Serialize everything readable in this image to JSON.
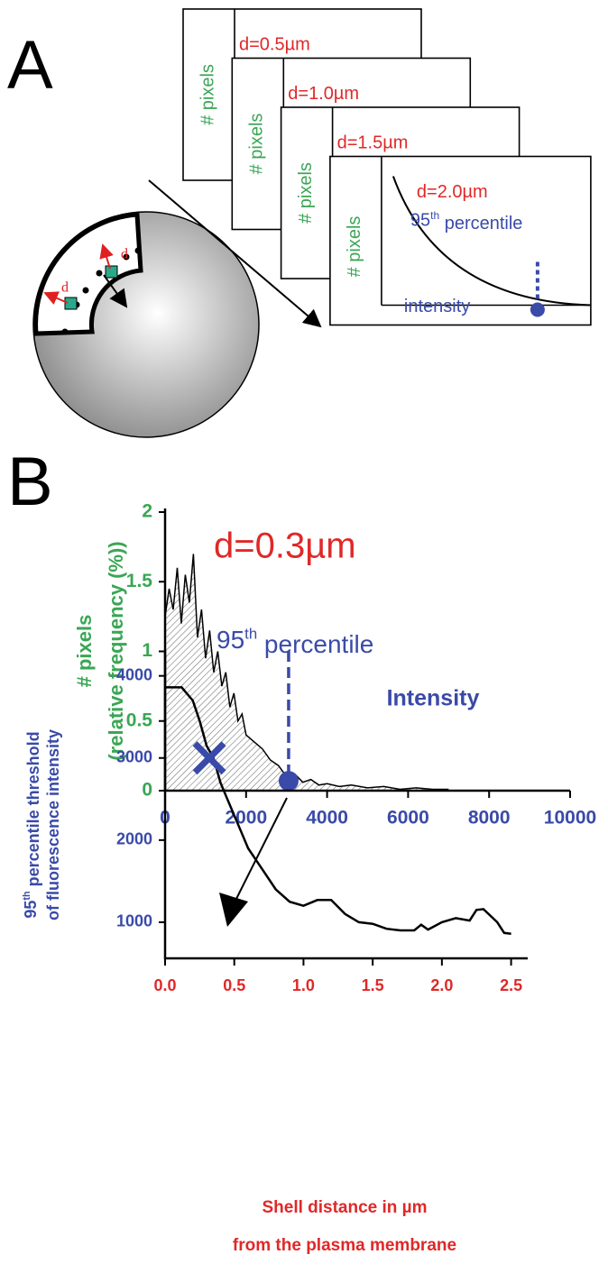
{
  "panel_a": {
    "label": "A",
    "frames": [
      {
        "label": "d=0.5µm",
        "ylabel": "# pixels"
      },
      {
        "label": "d=1.0µm",
        "ylabel": "# pixels"
      },
      {
        "label": "d=1.5µm",
        "ylabel": "# pixels"
      },
      {
        "label": "d=2.0µm",
        "ylabel": "# pixels"
      }
    ],
    "annotation": {
      "base": "95",
      "sup": "th",
      "rest": " percentile"
    },
    "xlabel": "intensity",
    "d_labels": [
      "d",
      "d"
    ]
  },
  "panel_b": {
    "label": "B"
  },
  "chart_data": [
    {
      "type": "area",
      "title": "d=0.3µm",
      "ylabel": [
        "# pixels",
        "(relative frequency (%))"
      ],
      "xlabel": "Intensity",
      "annotation": {
        "base": "95",
        "sup": "th",
        "rest": " percentile"
      },
      "x": [
        0,
        100,
        200,
        300,
        400,
        500,
        600,
        700,
        800,
        900,
        1000,
        1100,
        1200,
        1300,
        1400,
        1500,
        1600,
        1700,
        1800,
        1900,
        2000,
        2200,
        2400,
        2600,
        2800,
        3000,
        3200,
        3400,
        3600,
        3800,
        4000,
        4300,
        4600,
        5000,
        5400,
        5800,
        6200,
        6600,
        7000
      ],
      "values": [
        1.25,
        1.45,
        1.3,
        1.6,
        1.2,
        1.55,
        1.35,
        1.7,
        1.1,
        1.3,
        0.95,
        1.15,
        0.85,
        1.0,
        0.75,
        0.85,
        0.6,
        0.7,
        0.5,
        0.55,
        0.4,
        0.35,
        0.3,
        0.22,
        0.18,
        0.1,
        0.12,
        0.06,
        0.08,
        0.04,
        0.05,
        0.03,
        0.04,
        0.02,
        0.03,
        0.01,
        0.02,
        0.01,
        0.01
      ],
      "color": "#000000",
      "marker": {
        "x": 3050,
        "y": 0.07,
        "color": "#3a4aa8"
      },
      "xlim": [
        0,
        10000
      ],
      "xticks": [
        0,
        2000,
        4000,
        6000,
        8000,
        10000
      ],
      "ylim": [
        0,
        2
      ],
      "yticks": [
        0,
        0.5,
        1,
        1.5,
        2
      ]
    },
    {
      "type": "line",
      "ylabel": [
        {
          "base": "95",
          "sup": "th",
          "rest": " percentile threshold"
        },
        "of fluorescence intensity"
      ],
      "xlabel": [
        "Shell distance in µm",
        "from the plasma membrane"
      ],
      "x": [
        0,
        0.12,
        0.15,
        0.2,
        0.25,
        0.3,
        0.35,
        0.4,
        0.45,
        0.5,
        0.55,
        0.6,
        0.7,
        0.8,
        0.9,
        1.0,
        1.1,
        1.2,
        1.3,
        1.4,
        1.5,
        1.6,
        1.7,
        1.8,
        1.85,
        1.9,
        2.0,
        2.1,
        2.2,
        2.25,
        2.3,
        2.4,
        2.45,
        2.5
      ],
      "values": [
        3860,
        3860,
        3800,
        3700,
        3450,
        3150,
        3000,
        2700,
        2500,
        2300,
        2100,
        1900,
        1650,
        1400,
        1250,
        1200,
        1270,
        1270,
        1100,
        1000,
        980,
        920,
        900,
        900,
        970,
        910,
        1000,
        1050,
        1020,
        1150,
        1160,
        1000,
        870,
        860
      ],
      "color": "#000000",
      "marker": {
        "x": 0.32,
        "y": 3000,
        "color": "#3a4aa8"
      },
      "xlim": [
        0,
        2.62
      ],
      "xticks": [
        {
          "value": 0,
          "label": "0.0"
        },
        0.5,
        {
          "value": 1,
          "label": "1.0"
        },
        1.5,
        {
          "value": 2,
          "label": "2.0"
        },
        2.5
      ],
      "ylim": [
        560,
        4260
      ],
      "yticks": [
        1000,
        2000,
        3000,
        4000
      ]
    }
  ]
}
